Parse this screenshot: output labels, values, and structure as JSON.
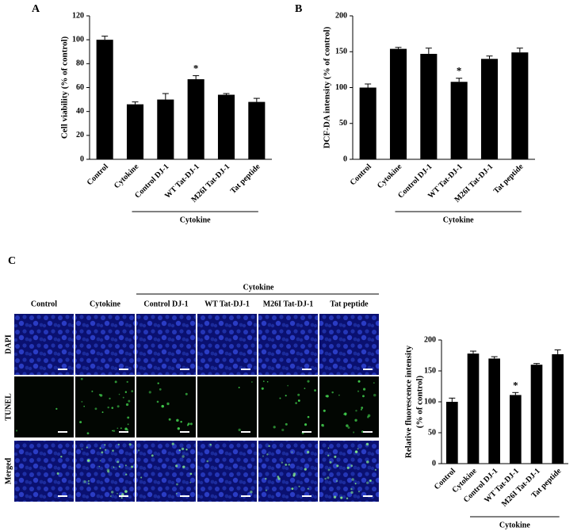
{
  "panels": {
    "a": "A",
    "b": "B",
    "c": "C"
  },
  "image_grid": {
    "group_label": "Cytokine",
    "columns": [
      "Control",
      "Cytokine",
      "Control DJ-1",
      "WT Tat-DJ-1",
      "M26I Tat-DJ-1",
      "Tat peptide"
    ],
    "rows": [
      "DAPI",
      "TUNEL",
      "Merged"
    ]
  },
  "chart_data": [
    {
      "type": "bar",
      "y_label": [
        "Cell viability (% of control)"
      ],
      "categories": [
        "Control",
        "Cytokine",
        "Control DJ-1",
        "WT Tat-DJ-1",
        "M26I Tat-DJ-1",
        "Tat peptide"
      ],
      "series": [
        {
          "color": "#000000",
          "values": [
            100,
            46,
            50,
            67,
            54,
            48
          ],
          "errors": [
            3,
            2,
            5,
            3,
            1,
            3
          ]
        }
      ],
      "ylim": [
        0,
        120
      ],
      "yticks": [
        0,
        20,
        40,
        60,
        80,
        100,
        120
      ],
      "annotation": {
        "text": "*",
        "category": "WT Tat-DJ-1"
      },
      "group_label": "Cytokine"
    },
    {
      "type": "bar",
      "y_label": [
        "DCF-DA intensity (% of control)"
      ],
      "categories": [
        "Control",
        "Cytokine",
        "Control DJ-1",
        "WT Tat-DJ-1",
        "M26I Tat-DJ-1",
        "Tat peptide"
      ],
      "series": [
        {
          "color": "#000000",
          "values": [
            100,
            154,
            147,
            108,
            140,
            149
          ],
          "errors": [
            5,
            2,
            8,
            5,
            4,
            6
          ]
        }
      ],
      "ylim": [
        0,
        200
      ],
      "yticks": [
        0,
        50,
        100,
        150,
        200
      ],
      "annotation": {
        "text": "*",
        "category": "WT Tat-DJ-1"
      },
      "group_label": "Cytokine"
    },
    {
      "type": "bar",
      "y_label": [
        "Relative fluorescence intensity",
        "(% of control)"
      ],
      "categories": [
        "Control",
        "Cytokine",
        "Control DJ-1",
        "WT Tat-DJ-1",
        "M26I Tat-DJ-1",
        "Tat peptide"
      ],
      "series": [
        {
          "color": "#000000",
          "values": [
            100,
            178,
            170,
            111,
            160,
            177
          ],
          "errors": [
            6,
            4,
            3,
            4,
            2,
            7
          ]
        }
      ],
      "ylim": [
        0,
        200
      ],
      "yticks": [
        0,
        50,
        100,
        150,
        200
      ],
      "annotation": {
        "text": "*",
        "category": "WT Tat-DJ-1"
      },
      "group_label": "Cytokine"
    }
  ]
}
